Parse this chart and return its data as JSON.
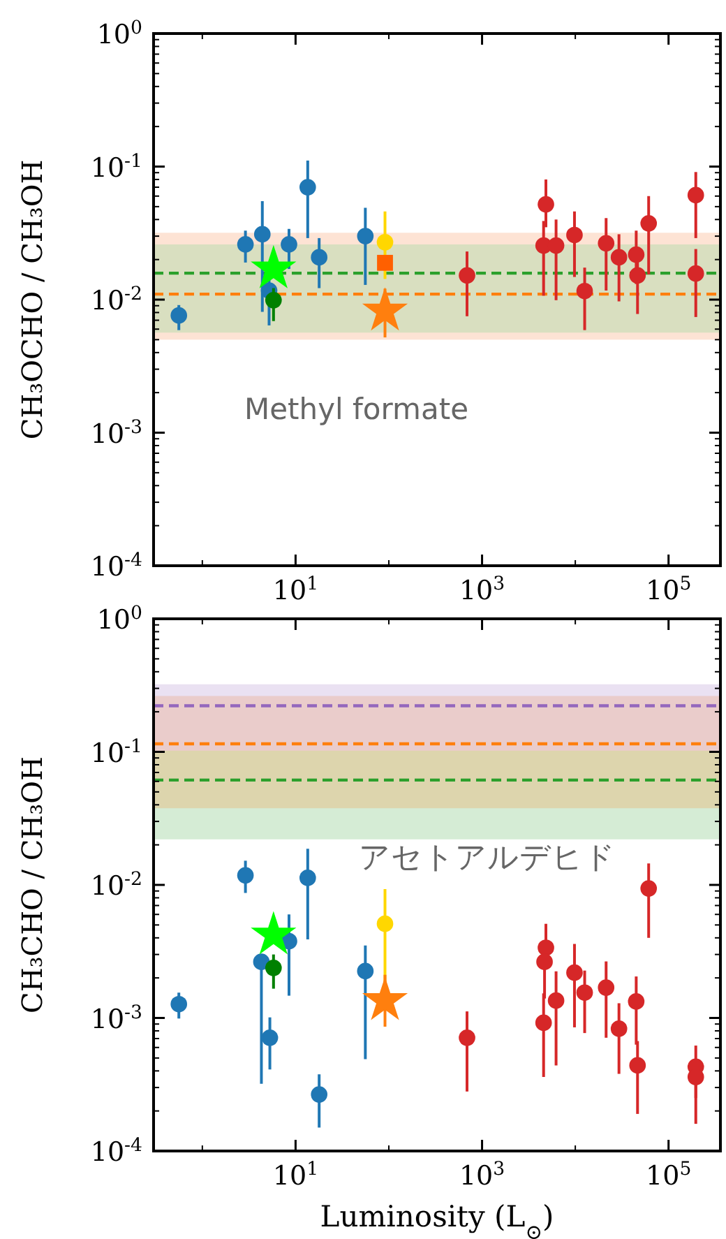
{
  "chart_data": [
    {
      "type": "scatter",
      "ylabel": "CH₃OCHO / CH₃OH",
      "log": "xy",
      "xlim": [
        0.3,
        360000
      ],
      "ylim": [
        0.0001,
        1
      ],
      "xticks": [
        {
          "value": 1,
          "label": null
        },
        {
          "value": 10,
          "label": "10$^{1}$"
        },
        {
          "value": 100,
          "label": null
        },
        {
          "value": 1000,
          "label": "10$^{3}$"
        },
        {
          "value": 10000,
          "label": null
        },
        {
          "value": 100000,
          "label": "10$^{5}$"
        }
      ],
      "yticks": [
        {
          "value": 0.0001,
          "label": "10$^{-4}$"
        },
        {
          "value": 0.001,
          "label": "10$^{-3}$"
        },
        {
          "value": 0.01,
          "label": "10$^{-2}$"
        },
        {
          "value": 0.1,
          "label": "10$^{-1}$"
        },
        {
          "value": 1,
          "label": "10$^{0}$"
        }
      ],
      "annotations": [
        "Methyl formate"
      ],
      "bands": [
        {
          "axis": "y",
          "from": 0.005,
          "to": 0.0318,
          "color": "#fde3d4"
        },
        {
          "axis": "y",
          "from": 0.00565,
          "to": 0.026,
          "color": "#d9dfc0"
        }
      ],
      "ref_lines": [
        {
          "axis": "y",
          "value": 0.0158,
          "color": "#2ca02c",
          "line_style": "dashed"
        },
        {
          "axis": "y",
          "value": 0.011,
          "color": "#ff7f0e",
          "line_style": "dashed"
        }
      ],
      "series": [
        {
          "color": "#1f77b4",
          "marker": "circle",
          "x": [
            0.56,
            2.9,
            4.4,
            5.2,
            8.5,
            13.5,
            17.9,
            56
          ],
          "values": [
            0.0076,
            0.026,
            0.031,
            0.0117,
            0.026,
            0.07,
            0.0208,
            0.03
          ],
          "errors": [
            [
              0.0059,
              0.0091
            ],
            [
              0.019,
              0.033
            ],
            [
              0.0081,
              0.055
            ],
            [
              0.0064,
              0.014
            ],
            [
              0.017,
              0.034
            ],
            [
              0.029,
              0.111
            ],
            [
              0.0122,
              0.029
            ],
            [
              0.0129,
              0.049
            ]
          ]
        },
        {
          "color": "#d62728",
          "marker": "circle",
          "x": [
            690,
            4840,
            4570,
            6220,
            9800,
            12600,
            21400,
            29400,
            45000,
            46500,
            61200,
            196000,
            196000
          ],
          "values": [
            0.0152,
            0.052,
            0.0255,
            0.0255,
            0.0306,
            0.0116,
            0.0265,
            0.0208,
            0.0218,
            0.0152,
            0.0374,
            0.061,
            0.0157
          ],
          "errors": [
            [
              0.0075,
              0.023
            ],
            [
              0.035,
              0.08
            ],
            [
              0.0107,
              0.039
            ],
            [
              0.0099,
              0.04
            ],
            [
              0.0148,
              0.046
            ],
            [
              0.0059,
              0.0174
            ],
            [
              0.0117,
              0.041
            ],
            [
              0.0097,
              0.031
            ],
            [
              0.0131,
              0.033
            ],
            [
              0.0078,
              0.0197
            ],
            [
              0.0155,
              0.06
            ],
            [
              0.029,
              0.091
            ],
            [
              0.0074,
              0.024
            ]
          ]
        },
        {
          "color": "#008000",
          "marker": "circle",
          "x": [
            5.8
          ],
          "values": [
            0.0099
          ],
          "errors": [
            [
              0.0069,
              0.0122
            ]
          ]
        },
        {
          "color": "#ffd700",
          "marker": "circle",
          "x": [
            91
          ],
          "values": [
            0.027
          ],
          "errors": [
            [
              0.0143,
              0.046
            ]
          ]
        },
        {
          "color": "#ff6000",
          "marker": "square",
          "x": [
            91
          ],
          "values": [
            0.0189
          ]
        },
        {
          "color": "#00ff00",
          "marker": "star",
          "x": [
            5.8
          ],
          "values": [
            0.017
          ]
        },
        {
          "color": "#ff7f0e",
          "marker": "star",
          "x": [
            91
          ],
          "values": [
            0.0082
          ],
          "errors": [
            [
              0.0052,
              0.0121
            ]
          ]
        }
      ]
    },
    {
      "type": "scatter",
      "xlabel": "Luminosity (L$_{⊙}$)",
      "ylabel": "CH₃CHO / CH₃OH",
      "log": "xy",
      "xlim": [
        0.3,
        360000
      ],
      "ylim": [
        0.0001,
        1
      ],
      "xticks": [
        {
          "value": 1,
          "label": null
        },
        {
          "value": 10,
          "label": "10$^{1}$"
        },
        {
          "value": 100,
          "label": null
        },
        {
          "value": 1000,
          "label": "10$^{3}$"
        },
        {
          "value": 10000,
          "label": null
        },
        {
          "value": 100000,
          "label": "10$^{5}$"
        }
      ],
      "yticks": [
        {
          "value": 0.0001,
          "label": "10$^{-4}$"
        },
        {
          "value": 0.001,
          "label": "10$^{-3}$"
        },
        {
          "value": 0.01,
          "label": "10$^{-2}$"
        },
        {
          "value": 0.1,
          "label": "10$^{-1}$"
        },
        {
          "value": 1,
          "label": "10$^{0}$"
        }
      ],
      "annotations": [
        "アセトアルデヒド"
      ],
      "bands": [
        {
          "axis": "y",
          "from": 0.022,
          "to": 0.102,
          "color": "#2ca02c"
        },
        {
          "axis": "y",
          "from": 0.0377,
          "to": 0.263,
          "color": "#ff7f0e"
        },
        {
          "axis": "y",
          "from": 0.102,
          "to": 0.322,
          "color": "#9467bd"
        }
      ],
      "ref_lines": [
        {
          "axis": "y",
          "value": 0.222,
          "color": "#9467bd",
          "line_style": "dashed"
        },
        {
          "axis": "y",
          "value": 0.115,
          "color": "#ff7f0e",
          "line_style": "dashed"
        },
        {
          "axis": "y",
          "value": 0.0614,
          "color": "#2ca02c",
          "line_style": "dashed"
        }
      ],
      "series": [
        {
          "color": "#1f77b4",
          "marker": "circle",
          "x": [
            0.56,
            2.9,
            4.3,
            5.3,
            8.5,
            13.5,
            17.9,
            56
          ],
          "values": [
            0.00127,
            0.0118,
            0.00264,
            0.00071,
            0.00377,
            0.0113,
            0.000266,
            0.00225
          ],
          "errors": [
            [
              0.00099,
              0.00155
            ],
            [
              0.0087,
              0.0152
            ],
            [
              0.00032,
              0.00303
            ],
            [
              0.00041,
              0.00101
            ],
            [
              0.00147,
              0.006
            ],
            [
              0.0039,
              0.0187
            ],
            [
              0.00015,
              0.000377
            ],
            [
              0.00049,
              0.0035
            ]
          ]
        },
        {
          "color": "#d62728",
          "marker": "circle",
          "x": [
            690,
            4840,
            4680,
            4570,
            6220,
            9800,
            12600,
            21400,
            29400,
            45000,
            46500,
            61200,
            196000,
            196000
          ],
          "values": [
            0.00071,
            0.00337,
            0.00264,
            0.00092,
            0.00135,
            0.00219,
            0.00155,
            0.00169,
            0.00083,
            0.00133,
            0.00044,
            0.0094,
            0.00043,
            0.00036
          ],
          "errors": [
            [
              0.00028,
              0.00112
            ],
            [
              0.0024,
              0.0051
            ],
            [
              0.0014,
              0.00264
            ],
            [
              0.00036,
              0.00153
            ],
            [
              0.00044,
              0.00224
            ],
            [
              0.00085,
              0.0036
            ],
            [
              0.00077,
              0.00227
            ],
            [
              0.00071,
              0.00266
            ],
            [
              0.00038,
              0.00129
            ],
            [
              0.00063,
              0.00205
            ],
            [
              0.00019,
              0.00067
            ],
            [
              0.004,
              0.0145
            ],
            [
              0.00025,
              0.00062
            ],
            [
              0.00016,
              0.00045
            ]
          ]
        },
        {
          "color": "#008000",
          "marker": "circle",
          "x": [
            5.8
          ],
          "values": [
            0.00238
          ],
          "errors": [
            [
              0.00166,
              0.003
            ]
          ]
        },
        {
          "color": "#ffd700",
          "marker": "circle",
          "x": [
            91
          ],
          "values": [
            0.0051
          ],
          "errors": [
            [
              0.0018,
              0.0093
            ]
          ]
        },
        {
          "color": "#00ff00",
          "marker": "star",
          "x": [
            5.8
          ],
          "values": [
            0.0042
          ]
        },
        {
          "color": "#ff7f0e",
          "marker": "star",
          "x": [
            91
          ],
          "values": [
            0.00135
          ],
          "errors": [
            [
              0.00086,
              0.00211
            ]
          ]
        }
      ]
    }
  ]
}
